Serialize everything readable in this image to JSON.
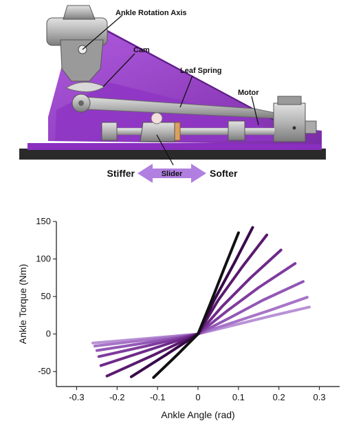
{
  "diagram": {
    "labels": {
      "ankle_rotation_axis": "Ankle Rotation Axis",
      "cam": "Cam",
      "leaf_spring": "Leaf Spring",
      "motor": "Motor",
      "slider": "Slider",
      "stiffer": "Stiffer",
      "softer": "Softer"
    },
    "colors": {
      "frame": "#9a3fd0",
      "frame_dark": "#6e2a9a",
      "metal": "#b8b8b8",
      "metal_dark": "#707070",
      "base": "#2a2a2a",
      "arrow": "#b07fe0"
    }
  },
  "chart_data": {
    "type": "line",
    "title": "",
    "xlabel": "Ankle Angle (rad)",
    "ylabel": "Ankle Torque (Nm)",
    "xlim": [
      -0.35,
      0.35
    ],
    "ylim": [
      -70,
      150
    ],
    "xticks": [
      -0.3,
      -0.2,
      -0.1,
      0,
      0.1,
      0.2,
      0.3
    ],
    "xtick_labels": [
      "-0.3",
      "-0.2",
      "-0.1",
      "0",
      "0.1",
      "0.2",
      "0.3"
    ],
    "yticks": [
      -50,
      0,
      50,
      100,
      150
    ],
    "ytick_labels": [
      "-50",
      "0",
      "50",
      "100",
      "150"
    ],
    "grid": false,
    "legend": "none",
    "series": [
      {
        "color": "#111111",
        "points": [
          [
            -0.11,
            -58
          ],
          [
            -0.05,
            -27
          ],
          [
            0,
            0
          ],
          [
            0.03,
            40
          ],
          [
            0.065,
            88
          ],
          [
            0.1,
            135
          ]
        ]
      },
      {
        "color": "#3a0a4a",
        "points": [
          [
            -0.165,
            -57
          ],
          [
            -0.08,
            -28
          ],
          [
            0,
            0
          ],
          [
            0.04,
            45
          ],
          [
            0.09,
            95
          ],
          [
            0.135,
            142
          ]
        ]
      },
      {
        "color": "#5a1a6e",
        "points": [
          [
            -0.225,
            -56
          ],
          [
            -0.11,
            -28
          ],
          [
            0,
            0
          ],
          [
            0.05,
            45
          ],
          [
            0.11,
            90
          ],
          [
            0.17,
            132
          ]
        ]
      },
      {
        "color": "#6e2a8a",
        "points": [
          [
            -0.24,
            -42
          ],
          [
            -0.12,
            -21
          ],
          [
            0,
            0
          ],
          [
            0.06,
            37
          ],
          [
            0.13,
            75
          ],
          [
            0.205,
            112
          ]
        ]
      },
      {
        "color": "#7f3c9e",
        "points": [
          [
            -0.245,
            -30
          ],
          [
            -0.12,
            -15
          ],
          [
            0,
            0
          ],
          [
            0.07,
            30
          ],
          [
            0.15,
            62
          ],
          [
            0.24,
            94
          ]
        ]
      },
      {
        "color": "#9257b6",
        "points": [
          [
            -0.25,
            -22
          ],
          [
            -0.12,
            -11
          ],
          [
            0,
            0
          ],
          [
            0.08,
            22
          ],
          [
            0.16,
            45
          ],
          [
            0.26,
            70
          ]
        ]
      },
      {
        "color": "#a774c8",
        "points": [
          [
            -0.255,
            -16
          ],
          [
            -0.13,
            -8
          ],
          [
            0,
            0
          ],
          [
            0.09,
            16
          ],
          [
            0.18,
            32
          ],
          [
            0.27,
            49
          ]
        ]
      },
      {
        "color": "#b992d6",
        "points": [
          [
            -0.26,
            -12
          ],
          [
            -0.13,
            -6
          ],
          [
            0,
            0
          ],
          [
            0.09,
            12
          ],
          [
            0.18,
            24
          ],
          [
            0.275,
            36
          ]
        ]
      }
    ]
  }
}
